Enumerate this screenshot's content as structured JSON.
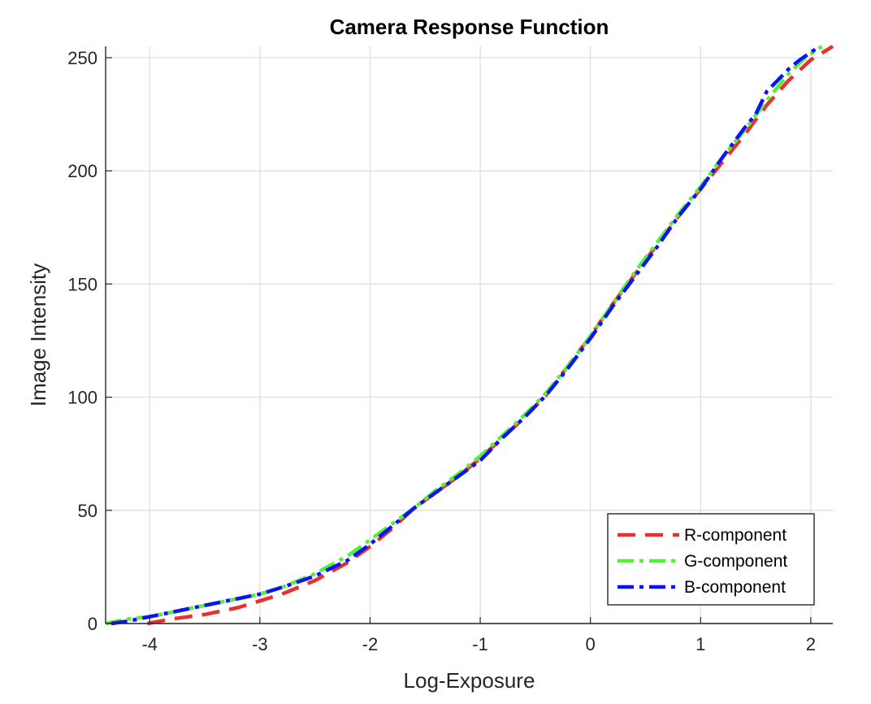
{
  "chart_data": {
    "type": "line",
    "title": "Camera Response Function",
    "xlabel": "Log-Exposure",
    "ylabel": "Image Intensity",
    "xlim": [
      -4.4,
      2.2
    ],
    "ylim": [
      0,
      255
    ],
    "xticks": [
      -4,
      -3,
      -2,
      -1,
      0,
      1,
      2
    ],
    "yticks": [
      0,
      50,
      100,
      150,
      200,
      250
    ],
    "grid": true,
    "legend_position": "bottom-right",
    "series": [
      {
        "name": "R-component",
        "color": "#e8312a",
        "dash": "dashed",
        "x": [
          -4.02,
          -3.8,
          -3.5,
          -3.2,
          -3.0,
          -2.8,
          -2.5,
          -2.2,
          -2.0,
          -1.8,
          -1.6,
          -1.4,
          -1.2,
          -1.0,
          -0.8,
          -0.6,
          -0.4,
          -0.2,
          0.0,
          0.2,
          0.4,
          0.6,
          0.8,
          1.0,
          1.2,
          1.4,
          1.6,
          1.8,
          2.0,
          2.2
        ],
        "y": [
          0,
          2,
          4,
          7,
          10,
          13,
          19,
          27,
          34,
          42,
          51,
          58,
          65,
          73,
          82,
          91,
          101,
          114,
          127,
          141,
          154,
          167,
          180,
          192,
          204,
          216,
          229,
          240,
          249,
          255
        ]
      },
      {
        "name": "G-component",
        "color": "#55f03a",
        "dash": "dashdot",
        "x": [
          -4.4,
          -4.2,
          -4.0,
          -3.8,
          -3.5,
          -3.2,
          -3.0,
          -2.8,
          -2.5,
          -2.2,
          -2.0,
          -1.8,
          -1.6,
          -1.4,
          -1.2,
          -1.0,
          -0.8,
          -0.6,
          -0.4,
          -0.2,
          0.0,
          0.2,
          0.4,
          0.6,
          0.8,
          1.0,
          1.2,
          1.4,
          1.6,
          1.8,
          1.95,
          2.1
        ],
        "y": [
          0,
          2,
          3,
          5,
          8,
          11,
          13,
          16,
          22,
          30,
          37,
          44,
          51,
          59,
          66,
          74,
          83,
          92,
          102,
          114,
          127,
          141,
          155,
          168,
          181,
          193,
          206,
          218,
          231,
          243,
          250,
          255
        ]
      },
      {
        "name": "B-component",
        "color": "#0a14f5",
        "dash": "dashdot",
        "x": [
          -4.35,
          -4.2,
          -4.0,
          -3.8,
          -3.5,
          -3.2,
          -3.0,
          -2.8,
          -2.5,
          -2.2,
          -2.0,
          -1.8,
          -1.6,
          -1.4,
          -1.2,
          -1.0,
          -0.8,
          -0.6,
          -0.4,
          -0.2,
          0.0,
          0.2,
          0.4,
          0.6,
          0.8,
          1.0,
          1.2,
          1.4,
          1.5,
          1.6,
          1.8,
          1.9,
          2.05
        ],
        "y": [
          0,
          1,
          3,
          5,
          8,
          11,
          13,
          16,
          21,
          28,
          35,
          43,
          51,
          58,
          65,
          72,
          82,
          91,
          101,
          113,
          126,
          140,
          153,
          166,
          180,
          192,
          206,
          219,
          225,
          235,
          245,
          249,
          254
        ]
      }
    ]
  }
}
